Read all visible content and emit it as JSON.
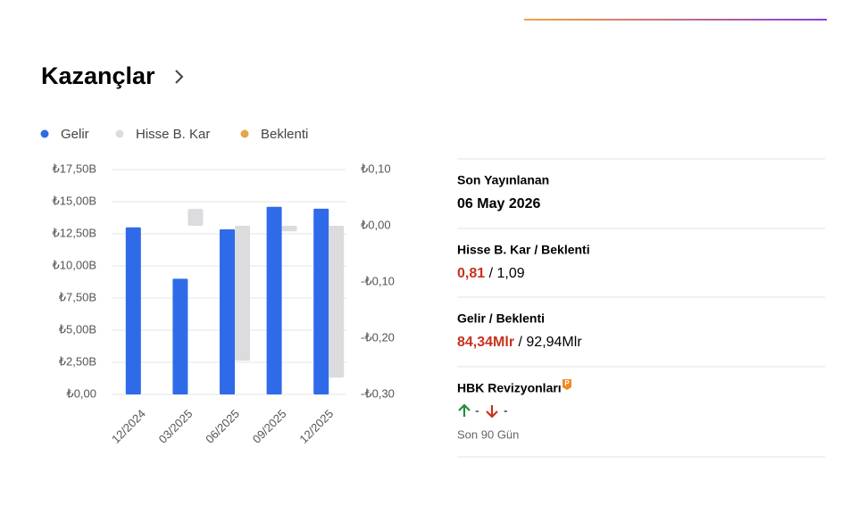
{
  "header": {
    "title": "Kazançlar"
  },
  "chart_data": {
    "type": "bar",
    "categories": [
      "12/2024",
      "03/2025",
      "06/2025",
      "09/2025",
      "12/2025"
    ],
    "series": [
      {
        "name": "Gelir",
        "color": "#2f6be8",
        "axis": "y",
        "values": [
          13.0,
          9.0,
          12.85,
          14.6,
          14.45
        ]
      },
      {
        "name": "Hisse B. Kar",
        "color": "#dcdcdf",
        "axis": "y2",
        "values": [
          null,
          0.03,
          -0.24,
          -0.01,
          -0.27
        ]
      },
      {
        "name": "Beklenti",
        "color": "#e0a84a",
        "axis": "y2",
        "values": [
          null,
          null,
          null,
          null,
          null
        ]
      }
    ],
    "ylim": [
      0,
      17.5
    ],
    "yticks": [
      {
        "value": 0,
        "label": "₺0,00"
      },
      {
        "value": 2.5,
        "label": "₺2,50B"
      },
      {
        "value": 5,
        "label": "₺5,00B"
      },
      {
        "value": 7.5,
        "label": "₺7,50B"
      },
      {
        "value": 10,
        "label": "₺10,00B"
      },
      {
        "value": 12.5,
        "label": "₺12,50B"
      },
      {
        "value": 15,
        "label": "₺15,00B"
      },
      {
        "value": 17.5,
        "label": "₺17,50B"
      }
    ],
    "y2lim": [
      -0.3,
      0.1
    ],
    "y2ticks": [
      {
        "value": 0.1,
        "label": "₺0,10"
      },
      {
        "value": 0,
        "label": "₺0,00"
      },
      {
        "value": -0.1,
        "label": "-₺0,10"
      },
      {
        "value": -0.2,
        "label": "-₺0,20"
      },
      {
        "value": -0.3,
        "label": "-₺0,30"
      }
    ],
    "grid": true
  },
  "panel": {
    "published": {
      "label": "Son Yayınlanan",
      "value": "06 May 2026"
    },
    "eps": {
      "label": "Hisse B. Kar / Beklenti",
      "actual": "0,81",
      "expected": "/ 1,09"
    },
    "revenue": {
      "label": "Gelir / Beklenti",
      "actual": "84,34Mlr",
      "expected": "/ 92,94Mlr"
    },
    "revisions": {
      "label": "HBK Revizyonları",
      "up": "-",
      "down": "-",
      "period": "Son 90 Gün"
    }
  }
}
